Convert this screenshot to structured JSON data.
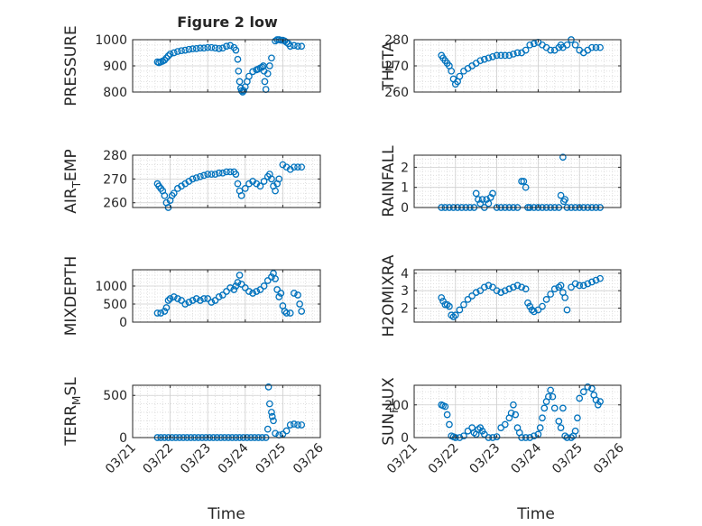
{
  "figure": {
    "title": "Figure 2 low",
    "xlabel_left": "Time",
    "xlabel_right": "Time"
  },
  "style": {
    "marker_color": "#0072BD",
    "axis_color": "#262626",
    "grid_color": "#d9d9d9"
  },
  "chart_data": [
    {
      "type": "scatter",
      "ylabel": "PRESSURE",
      "xlim": [
        "03/21",
        "03/26"
      ],
      "ylim": [
        800,
        1000
      ],
      "yticks": [
        800,
        900,
        1000
      ],
      "xtick_labels": [
        "03/21",
        "03/22",
        "03/23",
        "03/24",
        "03/25",
        "03/26"
      ],
      "show_xtick_labels": false,
      "grid": true,
      "series": [
        {
          "x": [
            0.66,
            0.7,
            0.75,
            0.8,
            0.85,
            0.9,
            0.95,
            1.0,
            1.1,
            1.2,
            1.3,
            1.4,
            1.5,
            1.6,
            1.7,
            1.8,
            1.9,
            2.0,
            2.1,
            2.2,
            2.3,
            2.4,
            2.5,
            2.6,
            2.7,
            2.75,
            2.8,
            2.82,
            2.85,
            2.88,
            2.9,
            2.93,
            2.96,
            3.0,
            3.05,
            3.1,
            3.2,
            3.3,
            3.35,
            3.4,
            3.45,
            3.48,
            3.5,
            3.52,
            3.55,
            3.6,
            3.65,
            3.7,
            3.8,
            3.85,
            3.9,
            3.95,
            4.0,
            4.05,
            4.1,
            4.15,
            4.2,
            4.3,
            4.4,
            4.5
          ],
          "y": [
            915,
            912,
            915,
            918,
            922,
            930,
            938,
            945,
            950,
            955,
            958,
            960,
            963,
            965,
            966,
            968,
            968,
            970,
            970,
            968,
            966,
            968,
            975,
            978,
            970,
            960,
            925,
            880,
            840,
            815,
            805,
            800,
            805,
            820,
            840,
            860,
            878,
            885,
            888,
            892,
            895,
            900,
            880,
            840,
            810,
            870,
            900,
            930,
            995,
            1000,
            1000,
            998,
            998,
            995,
            990,
            985,
            975,
            978,
            975,
            975
          ]
        }
      ]
    },
    {
      "type": "scatter",
      "ylabel": "THETA",
      "xlim": [
        "03/21",
        "03/26"
      ],
      "ylim": [
        260,
        280
      ],
      "yticks": [
        260,
        270,
        280
      ],
      "xtick_labels": [
        "03/21",
        "03/22",
        "03/23",
        "03/24",
        "03/25",
        "03/26"
      ],
      "show_xtick_labels": false,
      "grid": true,
      "series": [
        {
          "x": [
            0.66,
            0.7,
            0.75,
            0.8,
            0.85,
            0.9,
            0.95,
            1.0,
            1.05,
            1.1,
            1.2,
            1.3,
            1.4,
            1.5,
            1.6,
            1.7,
            1.8,
            1.9,
            2.0,
            2.1,
            2.2,
            2.3,
            2.4,
            2.5,
            2.6,
            2.7,
            2.8,
            2.9,
            3.0,
            3.1,
            3.2,
            3.3,
            3.4,
            3.5,
            3.55,
            3.6,
            3.7,
            3.8,
            3.9,
            4.0,
            4.1,
            4.2,
            4.3,
            4.4,
            4.5
          ],
          "y": [
            274,
            273,
            272,
            271,
            270,
            268,
            265,
            263,
            264,
            266,
            268,
            269,
            270,
            271,
            272,
            272.5,
            273,
            273.5,
            274,
            274,
            274,
            274,
            274.5,
            275,
            275,
            276,
            278,
            278.5,
            279,
            278,
            277,
            276,
            276,
            277,
            278,
            277,
            278,
            280,
            278,
            276,
            275,
            276,
            277,
            277,
            277
          ]
        }
      ]
    },
    {
      "type": "scatter",
      "ylabel": "AIR_TEMP",
      "xlim": [
        "03/21",
        "03/26"
      ],
      "ylim": [
        258,
        280
      ],
      "yticks": [
        260,
        270,
        280
      ],
      "xtick_labels": [
        "03/21",
        "03/22",
        "03/23",
        "03/24",
        "03/25",
        "03/26"
      ],
      "show_xtick_labels": false,
      "grid": true,
      "series": [
        {
          "x": [
            0.66,
            0.7,
            0.75,
            0.8,
            0.85,
            0.9,
            0.95,
            1.0,
            1.05,
            1.1,
            1.2,
            1.3,
            1.4,
            1.5,
            1.6,
            1.7,
            1.8,
            1.9,
            2.0,
            2.1,
            2.2,
            2.3,
            2.4,
            2.5,
            2.6,
            2.7,
            2.75,
            2.8,
            2.85,
            2.9,
            3.0,
            3.1,
            3.2,
            3.3,
            3.4,
            3.5,
            3.6,
            3.65,
            3.7,
            3.75,
            3.8,
            3.85,
            3.9,
            4.0,
            4.1,
            4.2,
            4.3,
            4.4,
            4.5
          ],
          "y": [
            268,
            267,
            266,
            265,
            263,
            260,
            258,
            261,
            263,
            264,
            266,
            267,
            268,
            269,
            270,
            270.5,
            271,
            271.5,
            272,
            272,
            272,
            272.5,
            272.5,
            273,
            273,
            273,
            272,
            268,
            265,
            263,
            266,
            268,
            269,
            268,
            267,
            269,
            271,
            272,
            270,
            267,
            265,
            268,
            270,
            276,
            275,
            274,
            275,
            275,
            275
          ]
        }
      ]
    },
    {
      "type": "scatter",
      "ylabel": "RAINFALL",
      "xlim": [
        "03/21",
        "03/26"
      ],
      "ylim": [
        0,
        2.6
      ],
      "yticks": [
        0,
        1,
        2
      ],
      "xtick_labels": [
        "03/21",
        "03/22",
        "03/23",
        "03/24",
        "03/25",
        "03/26"
      ],
      "show_xtick_labels": false,
      "grid": true,
      "series": [
        {
          "x": [
            0.66,
            0.75,
            0.85,
            0.95,
            1.05,
            1.15,
            1.25,
            1.35,
            1.45,
            1.5,
            1.55,
            1.6,
            1.65,
            1.7,
            1.75,
            1.8,
            1.85,
            1.9,
            2.0,
            2.1,
            2.2,
            2.3,
            2.4,
            2.5,
            2.6,
            2.65,
            2.7,
            2.75,
            2.8,
            2.9,
            3.0,
            3.1,
            3.2,
            3.3,
            3.4,
            3.5,
            3.55,
            3.6,
            3.62,
            3.65,
            3.7,
            3.8,
            3.9,
            4.0,
            4.1,
            4.2,
            4.3,
            4.4,
            4.5
          ],
          "y": [
            0,
            0,
            0,
            0,
            0,
            0,
            0,
            0,
            0,
            0.7,
            0.4,
            0.2,
            0.4,
            0,
            0.4,
            0.2,
            0.5,
            0.7,
            0,
            0,
            0,
            0,
            0,
            0,
            1.3,
            1.3,
            1.0,
            0,
            0,
            0,
            0,
            0,
            0,
            0,
            0,
            0,
            0.6,
            2.5,
            0.3,
            0.4,
            0,
            0,
            0,
            0,
            0,
            0,
            0,
            0,
            0
          ]
        }
      ]
    },
    {
      "type": "scatter",
      "ylabel": "MIXDEPTH",
      "xlim": [
        "03/21",
        "03/26"
      ],
      "ylim": [
        0,
        1450
      ],
      "yticks": [
        0,
        500,
        1000
      ],
      "xtick_labels": [
        "03/21",
        "03/22",
        "03/23",
        "03/24",
        "03/25",
        "03/26"
      ],
      "show_xtick_labels": false,
      "grid": true,
      "series": [
        {
          "x": [
            0.66,
            0.75,
            0.85,
            0.9,
            0.95,
            1.0,
            1.1,
            1.2,
            1.3,
            1.4,
            1.5,
            1.6,
            1.7,
            1.8,
            1.9,
            2.0,
            2.1,
            2.2,
            2.3,
            2.4,
            2.5,
            2.6,
            2.7,
            2.75,
            2.8,
            2.85,
            2.9,
            3.0,
            3.1,
            3.2,
            3.3,
            3.4,
            3.5,
            3.6,
            3.7,
            3.75,
            3.8,
            3.85,
            3.9,
            3.95,
            4.0,
            4.05,
            4.1,
            4.2,
            4.3,
            4.4,
            4.45,
            4.5
          ],
          "y": [
            250,
            250,
            300,
            400,
            600,
            650,
            700,
            650,
            600,
            500,
            550,
            600,
            650,
            600,
            650,
            650,
            550,
            600,
            700,
            750,
            850,
            950,
            900,
            1000,
            1100,
            1300,
            1050,
            950,
            850,
            800,
            850,
            900,
            1000,
            1150,
            1250,
            1350,
            1200,
            900,
            700,
            800,
            450,
            300,
            250,
            250,
            800,
            750,
            500,
            300
          ]
        }
      ]
    },
    {
      "type": "scatter",
      "ylabel": "H2OMIXRA",
      "xlim": [
        "03/21",
        "03/26"
      ],
      "ylim": [
        1.2,
        4.2
      ],
      "yticks": [
        2,
        3,
        4
      ],
      "xtick_labels": [
        "03/21",
        "03/22",
        "03/23",
        "03/24",
        "03/25",
        "03/26"
      ],
      "show_xtick_labels": false,
      "grid": true,
      "series": [
        {
          "x": [
            0.66,
            0.7,
            0.75,
            0.8,
            0.85,
            0.9,
            0.95,
            1.0,
            1.1,
            1.2,
            1.3,
            1.4,
            1.5,
            1.6,
            1.7,
            1.8,
            1.9,
            2.0,
            2.1,
            2.2,
            2.3,
            2.4,
            2.5,
            2.6,
            2.7,
            2.75,
            2.8,
            2.85,
            2.9,
            3.0,
            3.1,
            3.2,
            3.3,
            3.4,
            3.5,
            3.55,
            3.6,
            3.65,
            3.7,
            3.8,
            3.9,
            4.0,
            4.1,
            4.2,
            4.3,
            4.4,
            4.5
          ],
          "y": [
            2.6,
            2.4,
            2.2,
            2.2,
            2.1,
            1.6,
            1.5,
            1.6,
            1.9,
            2.2,
            2.5,
            2.7,
            2.9,
            3.0,
            3.2,
            3.3,
            3.2,
            3.0,
            2.9,
            3.0,
            3.1,
            3.2,
            3.3,
            3.2,
            3.1,
            2.3,
            2.1,
            1.9,
            1.8,
            1.9,
            2.1,
            2.5,
            2.8,
            3.1,
            3.2,
            3.3,
            2.9,
            2.6,
            1.9,
            3.2,
            3.4,
            3.3,
            3.3,
            3.4,
            3.5,
            3.6,
            3.7
          ]
        }
      ]
    },
    {
      "type": "scatter",
      "ylabel": "TERR_MSL",
      "xlim": [
        "03/21",
        "03/26"
      ],
      "ylim": [
        0,
        620
      ],
      "yticks": [
        0,
        500
      ],
      "xtick_labels": [
        "03/21",
        "03/22",
        "03/23",
        "03/24",
        "03/25",
        "03/26"
      ],
      "show_xtick_labels": true,
      "grid": true,
      "series": [
        {
          "x": [
            0.66,
            0.75,
            0.85,
            0.95,
            1.05,
            1.15,
            1.25,
            1.35,
            1.45,
            1.55,
            1.65,
            1.75,
            1.85,
            1.95,
            2.05,
            2.15,
            2.25,
            2.35,
            2.45,
            2.55,
            2.65,
            2.75,
            2.85,
            2.95,
            3.05,
            3.15,
            3.25,
            3.35,
            3.45,
            3.55,
            3.6,
            3.62,
            3.65,
            3.7,
            3.72,
            3.75,
            3.8,
            3.9,
            4.0,
            4.1,
            4.2,
            4.3,
            4.4,
            4.5
          ],
          "y": [
            0,
            0,
            0,
            0,
            0,
            0,
            0,
            0,
            0,
            0,
            0,
            0,
            0,
            0,
            0,
            0,
            0,
            0,
            0,
            0,
            0,
            0,
            0,
            0,
            0,
            0,
            0,
            0,
            0,
            0,
            100,
            600,
            400,
            300,
            250,
            200,
            50,
            30,
            40,
            80,
            150,
            160,
            150,
            150
          ]
        }
      ]
    },
    {
      "type": "scatter",
      "ylabel": "SUN_FLUX",
      "xlim": [
        "03/21",
        "03/26"
      ],
      "ylim": [
        0,
        320
      ],
      "yticks": [
        0,
        200
      ],
      "xtick_labels": [
        "03/21",
        "03/22",
        "03/23",
        "03/24",
        "03/25",
        "03/26"
      ],
      "show_xtick_labels": true,
      "grid": true,
      "series": [
        {
          "x": [
            0.66,
            0.7,
            0.75,
            0.8,
            0.85,
            0.9,
            0.95,
            1.0,
            1.1,
            1.2,
            1.3,
            1.4,
            1.45,
            1.5,
            1.55,
            1.6,
            1.65,
            1.7,
            1.8,
            1.9,
            2.0,
            2.1,
            2.2,
            2.3,
            2.35,
            2.4,
            2.45,
            2.5,
            2.55,
            2.6,
            2.7,
            2.8,
            2.9,
            3.0,
            3.05,
            3.1,
            3.15,
            3.2,
            3.25,
            3.3,
            3.35,
            3.4,
            3.5,
            3.55,
            3.6,
            3.65,
            3.7,
            3.8,
            3.85,
            3.9,
            3.95,
            4.0,
            4.1,
            4.2,
            4.3,
            4.35,
            4.4,
            4.45,
            4.5
          ],
          "y": [
            200,
            195,
            190,
            140,
            80,
            10,
            5,
            0,
            0,
            10,
            40,
            60,
            30,
            20,
            50,
            60,
            40,
            20,
            0,
            0,
            5,
            60,
            80,
            120,
            150,
            200,
            140,
            60,
            30,
            0,
            0,
            0,
            10,
            20,
            60,
            120,
            180,
            220,
            250,
            290,
            250,
            180,
            100,
            60,
            180,
            10,
            0,
            0,
            10,
            40,
            120,
            240,
            280,
            310,
            300,
            260,
            230,
            200,
            220
          ]
        }
      ]
    }
  ]
}
